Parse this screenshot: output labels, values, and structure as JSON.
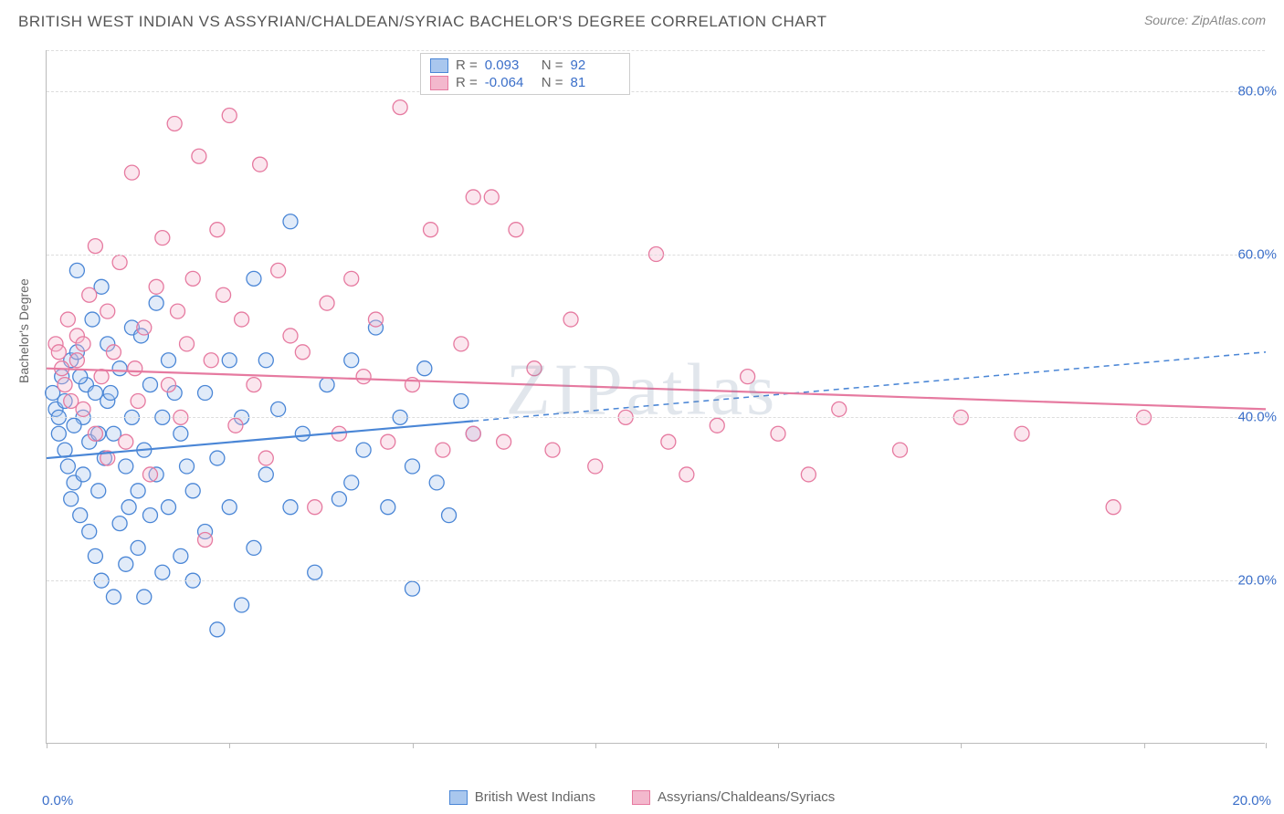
{
  "header": {
    "title": "BRITISH WEST INDIAN VS ASSYRIAN/CHALDEAN/SYRIAC BACHELOR'S DEGREE CORRELATION CHART",
    "source": "Source: ZipAtlas.com"
  },
  "chart": {
    "type": "scatter",
    "ylabel": "Bachelor's Degree",
    "watermark": "ZIPatlas",
    "background_color": "#ffffff",
    "grid_color": "#dddddd",
    "axis_color": "#bbbbbb",
    "tick_label_color": "#3b6fc9",
    "xlim": [
      0,
      20
    ],
    "ylim": [
      0,
      85
    ],
    "xticks": [
      0,
      3,
      6,
      9,
      12,
      15,
      18,
      20
    ],
    "xtick_labels": {
      "0": "0.0%",
      "20": "20.0%"
    },
    "yticks": [
      20,
      40,
      60,
      80
    ],
    "ytick_labels": {
      "20": "20.0%",
      "40": "40.0%",
      "60": "60.0%",
      "80": "80.0%"
    },
    "marker_radius": 8,
    "marker_fill_opacity": 0.35,
    "marker_stroke_width": 1.3,
    "series": [
      {
        "name": "British West Indians",
        "color_stroke": "#4a86d6",
        "color_fill": "#a9c7ee",
        "R": "0.093",
        "N": "92",
        "trend": {
          "y_at_xmin": 35,
          "y_at_xmax": 48,
          "solid_until_x": 7,
          "stroke_width": 2.2
        },
        "points": [
          [
            0.1,
            43
          ],
          [
            0.15,
            41
          ],
          [
            0.2,
            40
          ],
          [
            0.2,
            38
          ],
          [
            0.25,
            45
          ],
          [
            0.3,
            36
          ],
          [
            0.3,
            42
          ],
          [
            0.35,
            34
          ],
          [
            0.4,
            47
          ],
          [
            0.4,
            30
          ],
          [
            0.45,
            32
          ],
          [
            0.5,
            58
          ],
          [
            0.5,
            48
          ],
          [
            0.55,
            28
          ],
          [
            0.6,
            40
          ],
          [
            0.6,
            33
          ],
          [
            0.65,
            44
          ],
          [
            0.7,
            26
          ],
          [
            0.7,
            37
          ],
          [
            0.75,
            52
          ],
          [
            0.8,
            43
          ],
          [
            0.8,
            23
          ],
          [
            0.85,
            31
          ],
          [
            0.9,
            56
          ],
          [
            0.9,
            20
          ],
          [
            0.95,
            35
          ],
          [
            1.0,
            49
          ],
          [
            1.0,
            42
          ],
          [
            1.1,
            18
          ],
          [
            1.1,
            38
          ],
          [
            1.2,
            46
          ],
          [
            1.2,
            27
          ],
          [
            1.3,
            34
          ],
          [
            1.3,
            22
          ],
          [
            1.4,
            40
          ],
          [
            1.4,
            51
          ],
          [
            1.5,
            31
          ],
          [
            1.5,
            24
          ],
          [
            1.6,
            36
          ],
          [
            1.6,
            18
          ],
          [
            1.7,
            44
          ],
          [
            1.7,
            28
          ],
          [
            1.8,
            33
          ],
          [
            1.8,
            54
          ],
          [
            1.9,
            21
          ],
          [
            1.9,
            40
          ],
          [
            2.0,
            29
          ],
          [
            2.0,
            47
          ],
          [
            2.2,
            23
          ],
          [
            2.2,
            38
          ],
          [
            2.4,
            31
          ],
          [
            2.4,
            20
          ],
          [
            2.6,
            43
          ],
          [
            2.6,
            26
          ],
          [
            2.8,
            35
          ],
          [
            2.8,
            14
          ],
          [
            3.0,
            47
          ],
          [
            3.0,
            29
          ],
          [
            3.2,
            17
          ],
          [
            3.2,
            40
          ],
          [
            3.4,
            57
          ],
          [
            3.4,
            24
          ],
          [
            3.6,
            33
          ],
          [
            3.6,
            47
          ],
          [
            3.8,
            41
          ],
          [
            4.0,
            64
          ],
          [
            4.0,
            29
          ],
          [
            4.2,
            38
          ],
          [
            4.4,
            21
          ],
          [
            4.6,
            44
          ],
          [
            4.8,
            30
          ],
          [
            5.0,
            47
          ],
          [
            5.0,
            32
          ],
          [
            5.2,
            36
          ],
          [
            5.4,
            51
          ],
          [
            5.6,
            29
          ],
          [
            5.8,
            40
          ],
          [
            6.0,
            34
          ],
          [
            6.0,
            19
          ],
          [
            6.2,
            46
          ],
          [
            6.4,
            32
          ],
          [
            6.6,
            28
          ],
          [
            6.8,
            42
          ],
          [
            7.0,
            38
          ],
          [
            2.1,
            43
          ],
          [
            1.55,
            50
          ],
          [
            0.55,
            45
          ],
          [
            0.45,
            39
          ],
          [
            1.05,
            43
          ],
          [
            1.35,
            29
          ],
          [
            0.85,
            38
          ],
          [
            2.3,
            34
          ]
        ]
      },
      {
        "name": "Assyrians/Chaldeans/Syriacs",
        "color_stroke": "#e67aa0",
        "color_fill": "#f3b8cd",
        "R": "-0.064",
        "N": "81",
        "trend": {
          "y_at_xmin": 46,
          "y_at_xmax": 41,
          "solid_until_x": 20,
          "stroke_width": 2.2
        },
        "points": [
          [
            0.15,
            49
          ],
          [
            0.2,
            48
          ],
          [
            0.25,
            46
          ],
          [
            0.3,
            44
          ],
          [
            0.35,
            52
          ],
          [
            0.4,
            42
          ],
          [
            0.5,
            50
          ],
          [
            0.5,
            47
          ],
          [
            0.6,
            41
          ],
          [
            0.7,
            55
          ],
          [
            0.8,
            38
          ],
          [
            0.8,
            61
          ],
          [
            0.9,
            45
          ],
          [
            1.0,
            53
          ],
          [
            1.0,
            35
          ],
          [
            1.1,
            48
          ],
          [
            1.2,
            59
          ],
          [
            1.3,
            37
          ],
          [
            1.4,
            70
          ],
          [
            1.5,
            42
          ],
          [
            1.6,
            51
          ],
          [
            1.7,
            33
          ],
          [
            1.8,
            56
          ],
          [
            1.9,
            62
          ],
          [
            2.0,
            44
          ],
          [
            2.1,
            76
          ],
          [
            2.2,
            40
          ],
          [
            2.3,
            49
          ],
          [
            2.4,
            57
          ],
          [
            2.5,
            72
          ],
          [
            2.6,
            25
          ],
          [
            2.7,
            47
          ],
          [
            2.8,
            63
          ],
          [
            2.9,
            55
          ],
          [
            3.0,
            77
          ],
          [
            3.1,
            39
          ],
          [
            3.2,
            52
          ],
          [
            3.4,
            44
          ],
          [
            3.5,
            71
          ],
          [
            3.6,
            35
          ],
          [
            3.8,
            58
          ],
          [
            4.0,
            50
          ],
          [
            4.2,
            48
          ],
          [
            4.4,
            29
          ],
          [
            4.6,
            54
          ],
          [
            4.8,
            38
          ],
          [
            5.0,
            57
          ],
          [
            5.2,
            45
          ],
          [
            5.4,
            52
          ],
          [
            5.6,
            37
          ],
          [
            5.8,
            78
          ],
          [
            6.0,
            44
          ],
          [
            6.3,
            63
          ],
          [
            6.5,
            36
          ],
          [
            6.8,
            49
          ],
          [
            7.0,
            67
          ],
          [
            7.0,
            38
          ],
          [
            7.3,
            67
          ],
          [
            7.5,
            37
          ],
          [
            7.7,
            63
          ],
          [
            8.0,
            46
          ],
          [
            8.3,
            36
          ],
          [
            8.6,
            52
          ],
          [
            9.0,
            34
          ],
          [
            9.5,
            40
          ],
          [
            10.0,
            60
          ],
          [
            10.2,
            37
          ],
          [
            10.5,
            33
          ],
          [
            11.0,
            39
          ],
          [
            11.5,
            45
          ],
          [
            12.0,
            38
          ],
          [
            12.5,
            33
          ],
          [
            13.0,
            41
          ],
          [
            14.0,
            36
          ],
          [
            15.0,
            40
          ],
          [
            16.0,
            38
          ],
          [
            17.5,
            29
          ],
          [
            18.0,
            40
          ],
          [
            0.6,
            49
          ],
          [
            1.45,
            46
          ],
          [
            2.15,
            53
          ]
        ]
      }
    ],
    "legend_top": {
      "R_label": "R =",
      "N_label": "N ="
    },
    "legend_bottom_labels": [
      "British West Indians",
      "Assyrians/Chaldeans/Syriacs"
    ]
  }
}
